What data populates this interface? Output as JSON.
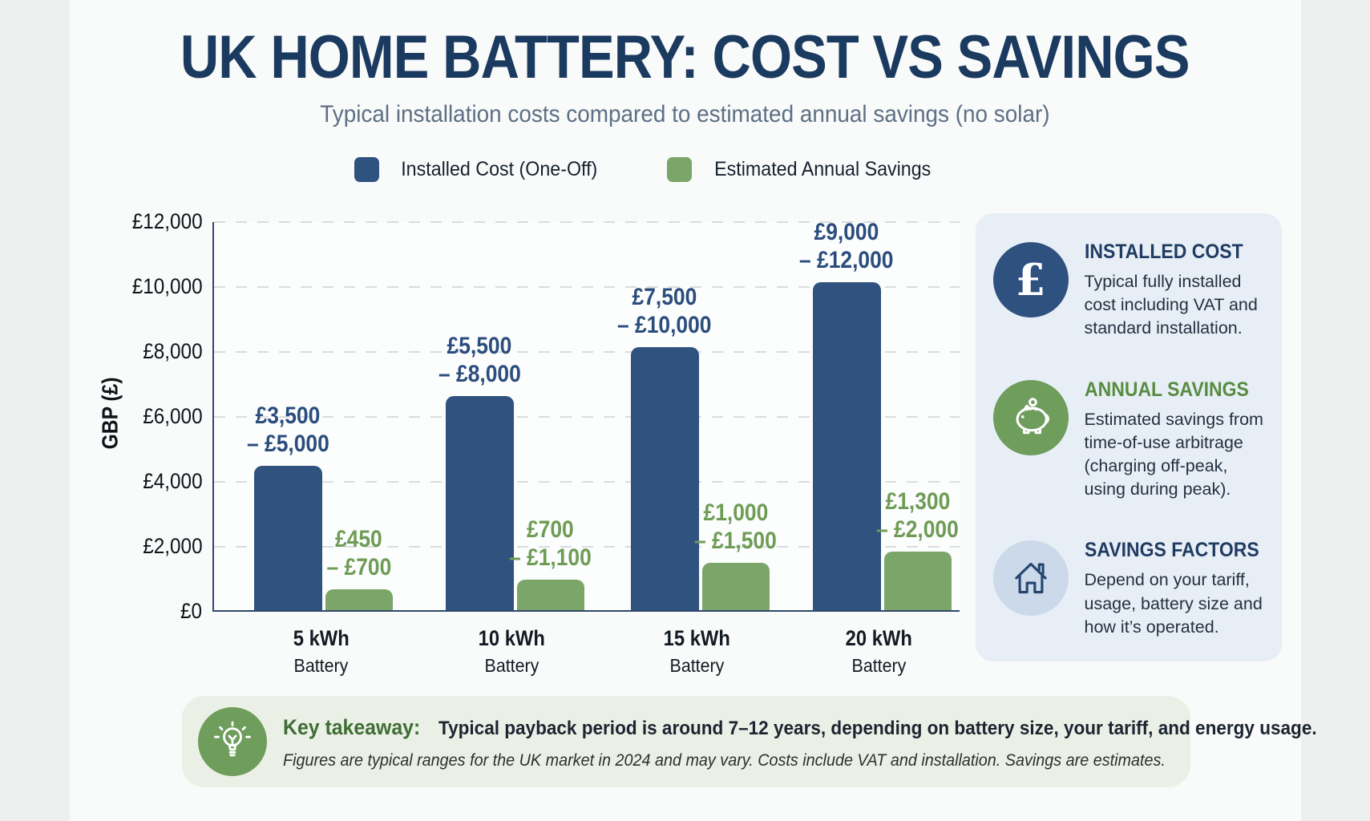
{
  "page": {
    "title": "UK HOME BATTERY: COST VS SAVINGS",
    "subtitle": "Typical installation costs compared to estimated annual savings (no solar)"
  },
  "colors": {
    "cost_bar": "#2F527E",
    "savings_bar": "#7BA569",
    "cost_label": "#2B4D7E",
    "savings_label": "#6E9C55",
    "title_navy": "#1B3A5F",
    "heading_green": "#578C41",
    "sidebar_bg": "#E8EEF5",
    "takeaway_bg": "#EBF0E7"
  },
  "chart_data": {
    "type": "bar",
    "title": "UK Home Battery: Cost vs Savings",
    "categories": [
      "5 kWh",
      "10 kWh",
      "15 kWh",
      "20 kWh"
    ],
    "category_sub": "Battery",
    "ylabel": "GBP (£)",
    "ylim": [
      0,
      12000
    ],
    "yticks": [
      "£12,000",
      "£10,000",
      "£8,000",
      "£6,000",
      "£4,000",
      "£2,000",
      "£0"
    ],
    "grid": "horizontal-dashed",
    "legend_position": "top",
    "series": [
      {
        "name": "Installed Cost (One-Off)",
        "color": "#2F527E",
        "label_color": "#2B4D7E",
        "ranges_gbp": [
          [
            3500,
            5000
          ],
          [
            5500,
            8000
          ],
          [
            7500,
            10000
          ],
          [
            9000,
            12000
          ]
        ],
        "range_labels": [
          [
            "£3,500",
            "– £5,000"
          ],
          [
            "£5,500",
            "– £8,000"
          ],
          [
            "£7,500",
            "– £10,000"
          ],
          [
            "£9,000",
            "– £12,000"
          ]
        ],
        "bar_values": [
          4450,
          6600,
          8100,
          10100
        ]
      },
      {
        "name": "Estimated Annual Savings",
        "color": "#7BA569",
        "label_color": "#6E9C55",
        "ranges_gbp": [
          [
            450,
            700
          ],
          [
            700,
            1100
          ],
          [
            1000,
            1500
          ],
          [
            1300,
            2000
          ]
        ],
        "range_labels": [
          [
            "£450",
            "– £700"
          ],
          [
            "£700",
            "– £1,100"
          ],
          [
            "£1,000",
            "– £1,500"
          ],
          [
            "£1,300",
            "– £2,000"
          ]
        ],
        "bar_values": [
          650,
          950,
          1450,
          1800
        ]
      }
    ]
  },
  "sidebar": {
    "cards": [
      {
        "icon": "pound-icon",
        "title": "INSTALLED COST",
        "body": "Typical fully installed cost including VAT and standard installation.",
        "accent": "#1F3C63"
      },
      {
        "icon": "piggy-bank-icon",
        "title": "ANNUAL SAVINGS",
        "body": "Estimated savings from time-of-use arbitrage (charging off-peak, using during peak).",
        "accent": "#578C41"
      },
      {
        "icon": "house-icon",
        "title": "SAVINGS FACTORS",
        "body": "Depend on your tariff, usage, battery size and how it’s operated.",
        "accent": "#1F3C63"
      }
    ]
  },
  "takeaway": {
    "icon": "lightbulb-icon",
    "heading": "Key takeaway:",
    "text": "Typical payback period is around 7–12 years, depending on battery size, your tariff, and energy usage.",
    "footnote": "Figures are typical ranges for the UK market in 2024 and may vary. Costs include VAT and installation. Savings are estimates."
  }
}
